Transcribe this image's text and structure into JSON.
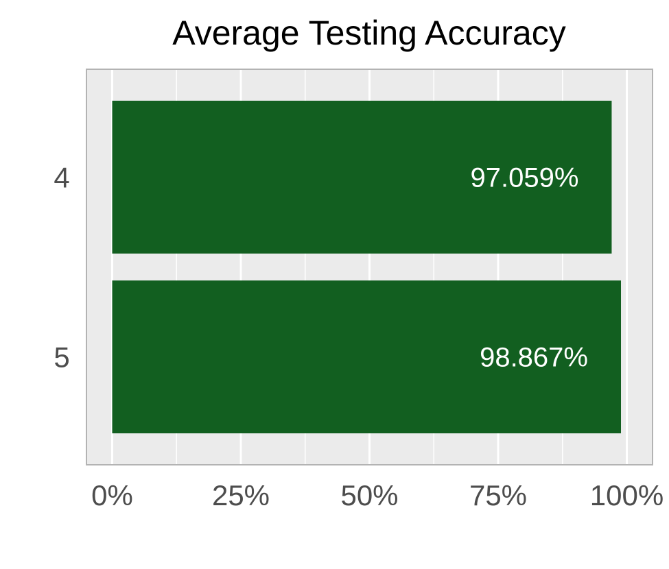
{
  "chart_data": {
    "type": "bar",
    "orientation": "horizontal",
    "title": "Average Testing Accuracy",
    "xlabel": "",
    "ylabel": "",
    "categories": [
      "4",
      "5"
    ],
    "values": [
      97.059,
      98.867
    ],
    "value_labels": [
      "97.059%",
      "98.867%"
    ],
    "xlim": [
      -5,
      105
    ],
    "x_ticks": [
      0,
      25,
      50,
      75,
      100
    ],
    "x_tick_labels": [
      "0%",
      "25%",
      "50%",
      "75%",
      "100%"
    ],
    "grid": true,
    "legend": "none",
    "colors": {
      "bar": "#125f20",
      "panel": "#ebebeb",
      "grid": "#ffffff",
      "border": "#b3b3b3",
      "bar_label": "#ffffff",
      "tick_label": "#4d4d4d",
      "title": "#000000"
    }
  }
}
